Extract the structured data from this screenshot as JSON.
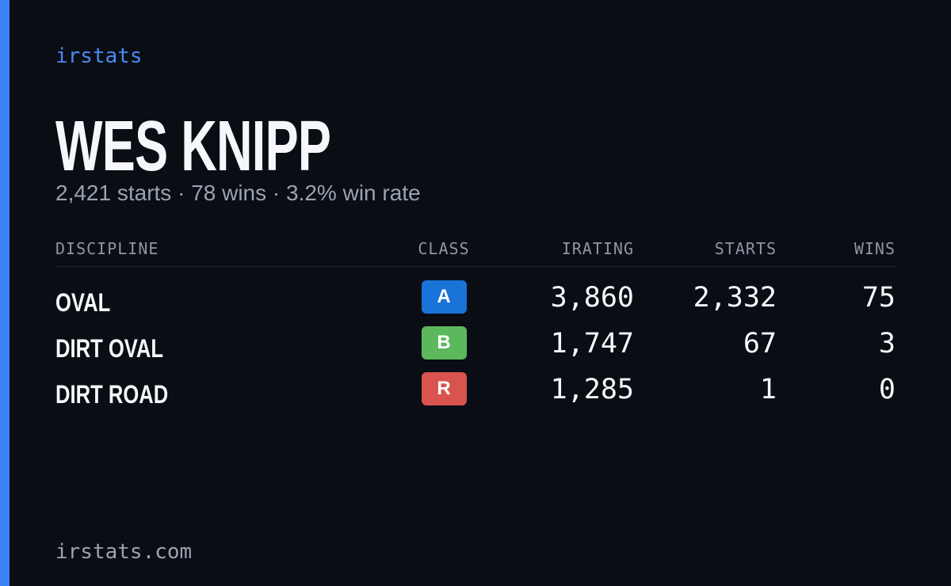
{
  "brand": "irstats",
  "driver": {
    "name": "WES KNIPP",
    "summary": "2,421 starts · 78 wins · 3.2% win rate"
  },
  "table": {
    "columns": [
      "DISCIPLINE",
      "CLASS",
      "IRATING",
      "STARTS",
      "WINS"
    ],
    "rows": [
      {
        "discipline": "OVAL",
        "class": "A",
        "class_color": "#1a73d9",
        "irating": "3,860",
        "starts": "2,332",
        "wins": "75"
      },
      {
        "discipline": "DIRT OVAL",
        "class": "B",
        "class_color": "#5cb85c",
        "irating": "1,747",
        "starts": "67",
        "wins": "3"
      },
      {
        "discipline": "DIRT ROAD",
        "class": "R",
        "class_color": "#d9534f",
        "irating": "1,285",
        "starts": "1",
        "wins": "0"
      }
    ]
  },
  "footer": "irstats.com"
}
